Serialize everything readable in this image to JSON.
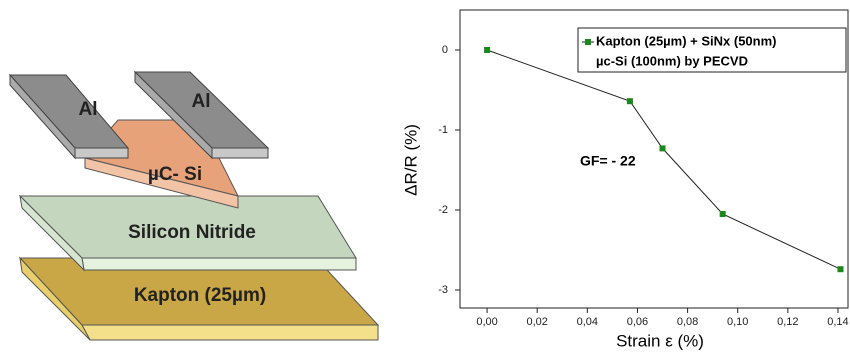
{
  "diagram": {
    "layers": [
      "Al",
      "Al",
      "µC- Si",
      "Silicon Nitride",
      "Kapton (25µm)"
    ]
  },
  "chart_data": {
    "type": "line",
    "x_label": "Strain ε (%)",
    "y_label": "ΔR/R (%)",
    "annotation": "GF= - 22",
    "legend_note": "µc-Si (100nm) by PECVD",
    "series": [
      {
        "name": "Kapton (25µm) + SiNx (50nm)",
        "color": "#1a8a1a",
        "x": [
          0.0,
          0.057,
          0.07,
          0.094,
          0.141
        ],
        "values": [
          0,
          -0.64,
          -1.23,
          -2.05,
          -2.74
        ]
      }
    ],
    "xlim": [
      -0.0108,
      0.144
    ],
    "ylim": [
      -3.225,
      0.5
    ],
    "xticks": [
      {
        "value": 0,
        "label": "0,00"
      },
      {
        "value": 0.02,
        "label": "0,02"
      },
      {
        "value": 0.04,
        "label": "0,04"
      },
      {
        "value": 0.06,
        "label": "0,06"
      },
      {
        "value": 0.08,
        "label": "0,08"
      },
      {
        "value": 0.1,
        "label": "0,10"
      },
      {
        "value": 0.12,
        "label": "0,12"
      },
      {
        "value": 0.14,
        "label": "0,14"
      }
    ],
    "yticks": [
      0,
      -1,
      -2,
      -3
    ],
    "legend": "upper right"
  }
}
